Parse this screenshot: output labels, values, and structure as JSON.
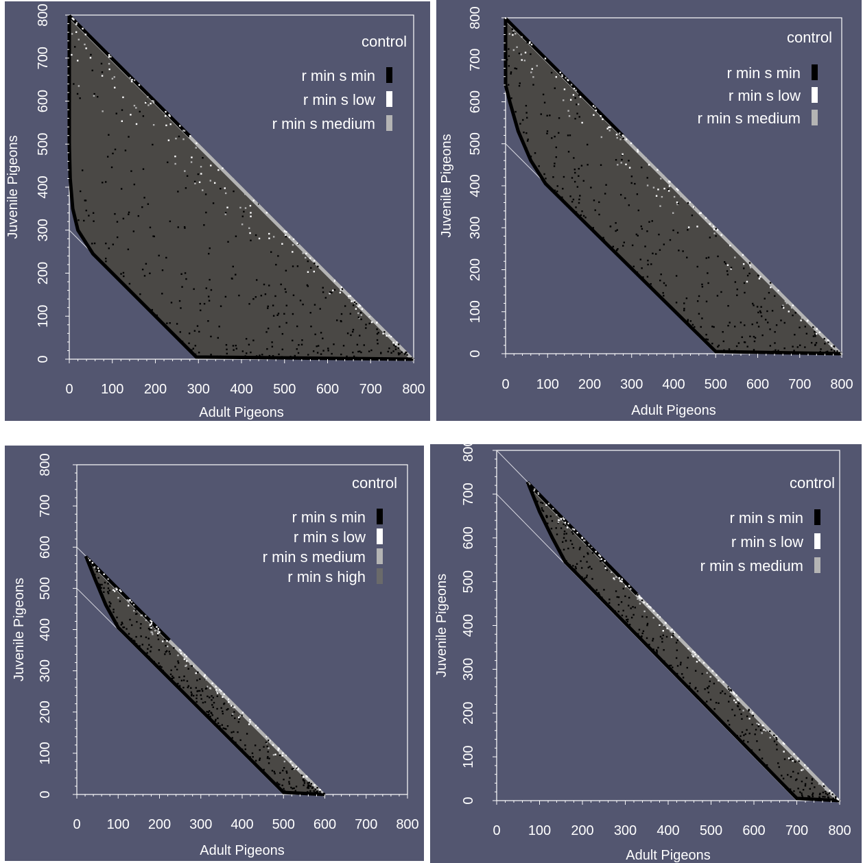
{
  "colors": {
    "background": "#535670",
    "region": "#4a4845",
    "frame": "#ffffff",
    "series": [
      "#000000",
      "#ffffff",
      "#b4b4b4",
      "#6a6a6a"
    ]
  },
  "chart_data": [
    {
      "type": "scatter",
      "xlabel": "Adult Pigeons",
      "ylabel": "Juvenile Pigeons",
      "xlim": [
        0,
        800
      ],
      "ylim": [
        0,
        800
      ],
      "xticks": [
        "0",
        "100",
        "200",
        "300",
        "400",
        "500",
        "600",
        "700",
        "800"
      ],
      "yticks": [
        "0",
        "100",
        "200",
        "300",
        "400",
        "500",
        "600",
        "700",
        "800"
      ],
      "legend_title": "control",
      "legend_position": "top-right",
      "series": [
        {
          "name": "r min s min",
          "color": "#000000"
        },
        {
          "name": "r min s low",
          "color": "#ffffff"
        },
        {
          "name": "r min s medium",
          "color": "#b4b4b4"
        }
      ],
      "reference_lines": [
        {
          "from": [
            0,
            800
          ],
          "to": [
            800,
            0
          ]
        },
        {
          "from": [
            0,
            300
          ],
          "to": [
            300,
            0
          ]
        }
      ],
      "region": {
        "upper_edge": [
          [
            0,
            800
          ],
          [
            800,
            0
          ]
        ],
        "lower_edge": [
          [
            0,
            800
          ],
          [
            0,
            500
          ],
          [
            2,
            420
          ],
          [
            8,
            350
          ],
          [
            20,
            300
          ],
          [
            55,
            245
          ],
          [
            295,
            5
          ],
          [
            800,
            0
          ]
        ]
      }
    },
    {
      "type": "scatter",
      "xlabel": "Adult Pigeons",
      "ylabel": "Juvenile Pigeons",
      "xlim": [
        0,
        800
      ],
      "ylim": [
        0,
        800
      ],
      "xticks": [
        "0",
        "100",
        "200",
        "300",
        "400",
        "500",
        "600",
        "700",
        "800"
      ],
      "yticks": [
        "0",
        "100",
        "200",
        "300",
        "400",
        "500",
        "600",
        "700",
        "800"
      ],
      "legend_title": "control",
      "legend_position": "top-right",
      "series": [
        {
          "name": "r min s min",
          "color": "#000000"
        },
        {
          "name": "r min s low",
          "color": "#ffffff"
        },
        {
          "name": "r min s medium",
          "color": "#b4b4b4"
        }
      ],
      "reference_lines": [
        {
          "from": [
            0,
            800
          ],
          "to": [
            800,
            0
          ]
        },
        {
          "from": [
            0,
            500
          ],
          "to": [
            500,
            0
          ]
        }
      ],
      "region": {
        "upper_edge": [
          [
            0,
            800
          ],
          [
            800,
            0
          ]
        ],
        "lower_edge": [
          [
            0,
            800
          ],
          [
            0,
            640
          ],
          [
            10,
            600
          ],
          [
            30,
            530
          ],
          [
            60,
            460
          ],
          [
            95,
            405
          ],
          [
            500,
            5
          ],
          [
            800,
            0
          ]
        ]
      }
    },
    {
      "type": "scatter",
      "xlabel": "Adult Pigeons",
      "ylabel": "Juvenile Pigeons",
      "xlim": [
        0,
        800
      ],
      "ylim": [
        0,
        800
      ],
      "xticks": [
        "0",
        "100",
        "200",
        "300",
        "400",
        "500",
        "600",
        "700",
        "800"
      ],
      "yticks": [
        "0",
        "100",
        "200",
        "300",
        "400",
        "500",
        "600",
        "700",
        "800"
      ],
      "legend_title": "control",
      "legend_position": "top-right",
      "series": [
        {
          "name": "r min s min",
          "color": "#000000"
        },
        {
          "name": "r min s low",
          "color": "#ffffff"
        },
        {
          "name": "r min s medium",
          "color": "#b4b4b4"
        },
        {
          "name": "r min s high",
          "color": "#6a6a6a"
        }
      ],
      "reference_lines": [
        {
          "from": [
            0,
            600
          ],
          "to": [
            600,
            0
          ]
        },
        {
          "from": [
            0,
            500
          ],
          "to": [
            500,
            0
          ]
        }
      ],
      "region": {
        "upper_edge": [
          [
            22,
            578
          ],
          [
            600,
            0
          ]
        ],
        "lower_edge": [
          [
            22,
            578
          ],
          [
            45,
            520
          ],
          [
            70,
            460
          ],
          [
            100,
            405
          ],
          [
            500,
            5
          ],
          [
            600,
            0
          ]
        ]
      }
    },
    {
      "type": "scatter",
      "xlabel": "Adult Pigeons",
      "ylabel": "Juvenile Pigeons",
      "xlim": [
        0,
        800
      ],
      "ylim": [
        0,
        800
      ],
      "xticks": [
        "0",
        "100",
        "200",
        "300",
        "400",
        "500",
        "600",
        "700",
        "800"
      ],
      "yticks": [
        "0",
        "100",
        "200",
        "300",
        "400",
        "500",
        "600",
        "700",
        "800"
      ],
      "legend_title": "control",
      "legend_position": "top-right",
      "series": [
        {
          "name": "r min s min",
          "color": "#000000"
        },
        {
          "name": "r min s low",
          "color": "#ffffff"
        },
        {
          "name": "r min s medium",
          "color": "#b4b4b4"
        }
      ],
      "reference_lines": [
        {
          "from": [
            0,
            800
          ],
          "to": [
            800,
            0
          ]
        },
        {
          "from": [
            0,
            700
          ],
          "to": [
            700,
            0
          ]
        }
      ],
      "region": {
        "upper_edge": [
          [
            72,
            728
          ],
          [
            800,
            0
          ]
        ],
        "lower_edge": [
          [
            72,
            728
          ],
          [
            100,
            660
          ],
          [
            130,
            600
          ],
          [
            160,
            545
          ],
          [
            700,
            5
          ],
          [
            800,
            0
          ]
        ]
      }
    }
  ]
}
